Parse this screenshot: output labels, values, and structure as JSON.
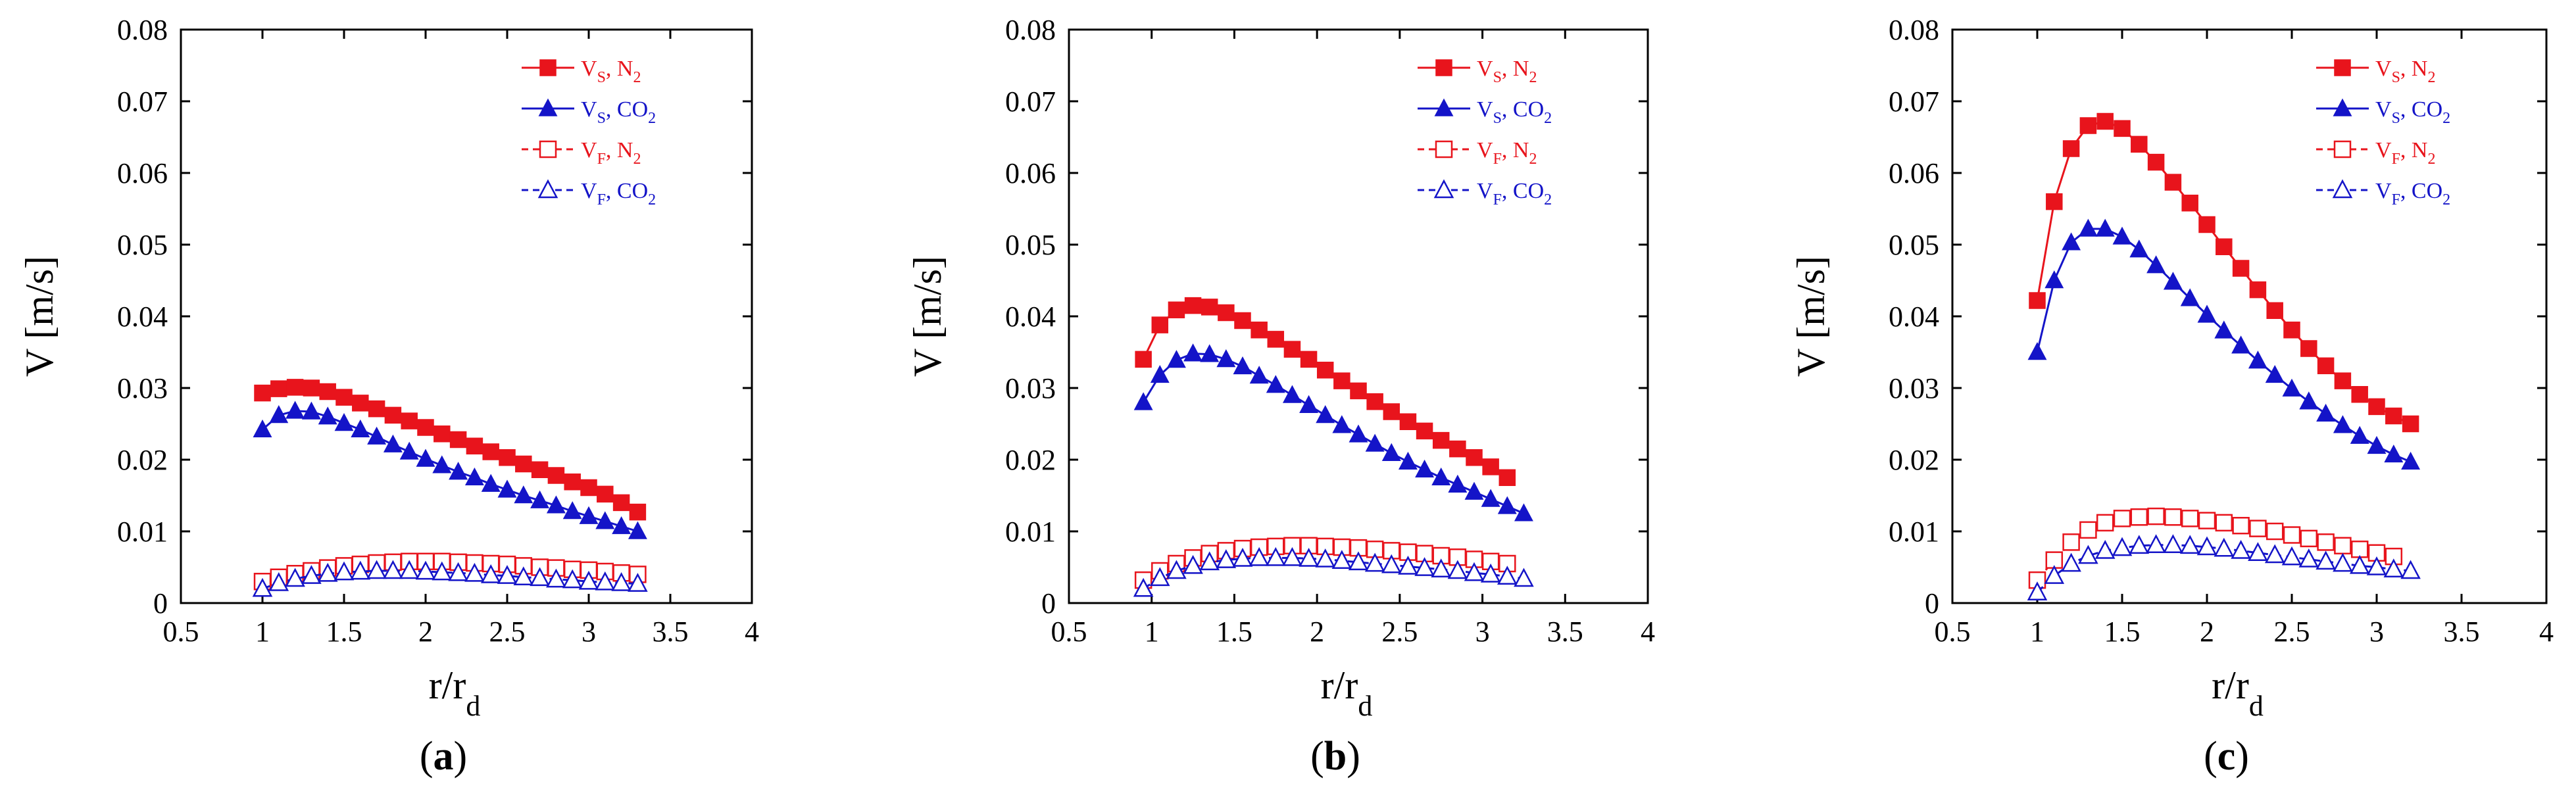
{
  "chart_data": [
    {
      "type": "scatter",
      "panel_label": "a",
      "xlabel": "r/r",
      "xlabel_sub": "d",
      "ylabel": "V [m/s]",
      "xlim": [
        0.5,
        4
      ],
      "ylim": [
        0,
        0.08
      ],
      "xticks": [
        "0.5",
        "1",
        "1.5",
        "2",
        "2.5",
        "3",
        "3.5",
        "4"
      ],
      "yticks": [
        "0",
        "0.01",
        "0.02",
        "0.03",
        "0.04",
        "0.05",
        "0.06",
        "0.07",
        "0.08"
      ],
      "legend": [
        {
          "v": "V",
          "vsub": "S",
          "gas": "N",
          "gsub": "2"
        },
        {
          "v": "V",
          "vsub": "S",
          "gas": "CO",
          "gsub": "2"
        },
        {
          "v": "V",
          "vsub": "F",
          "gas": "N",
          "gsub": "2"
        },
        {
          "v": "V",
          "vsub": "F",
          "gas": "CO",
          "gsub": "2"
        }
      ],
      "series": [
        {
          "name": "Vs, N2",
          "color": "#e8141c",
          "marker": "square-filled",
          "dashed": false,
          "x": [
            1.0,
            1.1,
            1.2,
            1.3,
            1.4,
            1.5,
            1.6,
            1.7,
            1.8,
            1.9,
            2.0,
            2.1,
            2.2,
            2.3,
            2.4,
            2.5,
            2.6,
            2.7,
            2.8,
            2.9,
            3.0,
            3.1,
            3.2,
            3.3
          ],
          "y": [
            0.0293,
            0.0299,
            0.0301,
            0.03,
            0.0295,
            0.0287,
            0.0279,
            0.0271,
            0.0262,
            0.0254,
            0.0245,
            0.0236,
            0.0228,
            0.0219,
            0.0211,
            0.0203,
            0.0194,
            0.0186,
            0.0178,
            0.0169,
            0.0161,
            0.0152,
            0.014,
            0.0127
          ]
        },
        {
          "name": "Vs, CO2",
          "color": "#1414c8",
          "marker": "triangle-filled",
          "dashed": false,
          "x": [
            1.0,
            1.1,
            1.2,
            1.3,
            1.4,
            1.5,
            1.6,
            1.7,
            1.8,
            1.9,
            2.0,
            2.1,
            2.2,
            2.3,
            2.4,
            2.5,
            2.6,
            2.7,
            2.8,
            2.9,
            3.0,
            3.1,
            3.2,
            3.3
          ],
          "y": [
            0.0242,
            0.0262,
            0.0268,
            0.0267,
            0.026,
            0.0251,
            0.0242,
            0.0232,
            0.0221,
            0.0211,
            0.0201,
            0.0192,
            0.0183,
            0.0175,
            0.0166,
            0.0158,
            0.015,
            0.0143,
            0.0136,
            0.0128,
            0.0121,
            0.0114,
            0.0107,
            0.01
          ]
        },
        {
          "name": "Vf, N2",
          "color": "#e8141c",
          "marker": "square-open",
          "dashed": true,
          "x": [
            1.0,
            1.1,
            1.2,
            1.3,
            1.4,
            1.5,
            1.6,
            1.7,
            1.8,
            1.9,
            2.0,
            2.1,
            2.2,
            2.3,
            2.4,
            2.5,
            2.6,
            2.7,
            2.8,
            2.9,
            3.0,
            3.1,
            3.2,
            3.3
          ],
          "y": [
            0.003,
            0.0036,
            0.0041,
            0.0045,
            0.0049,
            0.0052,
            0.0054,
            0.0056,
            0.0057,
            0.0058,
            0.0058,
            0.0058,
            0.0057,
            0.0056,
            0.0055,
            0.0054,
            0.0052,
            0.005,
            0.0049,
            0.0047,
            0.0046,
            0.0044,
            0.0042,
            0.004
          ]
        },
        {
          "name": "Vf, CO2",
          "color": "#1414c8",
          "marker": "triangle-open",
          "dashed": true,
          "x": [
            1.0,
            1.1,
            1.2,
            1.3,
            1.4,
            1.5,
            1.6,
            1.7,
            1.8,
            1.9,
            2.0,
            2.1,
            2.2,
            2.3,
            2.4,
            2.5,
            2.6,
            2.7,
            2.8,
            2.9,
            3.0,
            3.1,
            3.2,
            3.3
          ],
          "y": [
            0.002,
            0.0028,
            0.0034,
            0.0038,
            0.0041,
            0.0043,
            0.0044,
            0.0045,
            0.0045,
            0.0045,
            0.0044,
            0.0043,
            0.0042,
            0.0041,
            0.0039,
            0.0038,
            0.0036,
            0.0035,
            0.0033,
            0.0032,
            0.003,
            0.0029,
            0.0028,
            0.0027
          ]
        }
      ]
    },
    {
      "type": "scatter",
      "panel_label": "b",
      "xlabel": "r/r",
      "xlabel_sub": "d",
      "ylabel": "V [m/s]",
      "xlim": [
        0.5,
        4
      ],
      "ylim": [
        0,
        0.08
      ],
      "xticks": [
        "0.5",
        "1",
        "1.5",
        "2",
        "2.5",
        "3",
        "3.5",
        "4"
      ],
      "yticks": [
        "0",
        "0.01",
        "0.02",
        "0.03",
        "0.04",
        "0.05",
        "0.06",
        "0.07",
        "0.08"
      ],
      "legend": [
        {
          "v": "V",
          "vsub": "S",
          "gas": "N",
          "gsub": "2"
        },
        {
          "v": "V",
          "vsub": "S",
          "gas": "CO",
          "gsub": "2"
        },
        {
          "v": "V",
          "vsub": "F",
          "gas": "N",
          "gsub": "2"
        },
        {
          "v": "V",
          "vsub": "F",
          "gas": "CO",
          "gsub": "2"
        }
      ],
      "series": [
        {
          "name": "Vs, N2",
          "color": "#e8141c",
          "marker": "square-filled",
          "dashed": false,
          "x": [
            0.95,
            1.05,
            1.15,
            1.25,
            1.35,
            1.45,
            1.55,
            1.65,
            1.75,
            1.85,
            1.95,
            2.05,
            2.15,
            2.25,
            2.35,
            2.45,
            2.55,
            2.65,
            2.75,
            2.85,
            2.95,
            3.05,
            3.15
          ],
          "y": [
            0.034,
            0.0388,
            0.0409,
            0.0415,
            0.0413,
            0.0405,
            0.0394,
            0.0381,
            0.0368,
            0.0354,
            0.034,
            0.0325,
            0.031,
            0.0296,
            0.0281,
            0.0267,
            0.0253,
            0.024,
            0.0227,
            0.0215,
            0.0203,
            0.019,
            0.0175
          ]
        },
        {
          "name": "Vs, CO2",
          "color": "#1414c8",
          "marker": "triangle-filled",
          "dashed": false,
          "x": [
            0.95,
            1.05,
            1.15,
            1.25,
            1.35,
            1.45,
            1.55,
            1.65,
            1.75,
            1.85,
            1.95,
            2.05,
            2.15,
            2.25,
            2.35,
            2.45,
            2.55,
            2.65,
            2.75,
            2.85,
            2.95,
            3.05,
            3.15,
            3.25
          ],
          "y": [
            0.028,
            0.0318,
            0.0339,
            0.0348,
            0.0347,
            0.034,
            0.033,
            0.0317,
            0.0304,
            0.029,
            0.0276,
            0.0262,
            0.0248,
            0.0235,
            0.0222,
            0.0209,
            0.0197,
            0.0186,
            0.0175,
            0.0165,
            0.0155,
            0.0145,
            0.0135,
            0.0125
          ]
        },
        {
          "name": "Vf, N2",
          "color": "#e8141c",
          "marker": "square-open",
          "dashed": true,
          "x": [
            0.95,
            1.05,
            1.15,
            1.25,
            1.35,
            1.45,
            1.55,
            1.65,
            1.75,
            1.85,
            1.95,
            2.05,
            2.15,
            2.25,
            2.35,
            2.45,
            2.55,
            2.65,
            2.75,
            2.85,
            2.95,
            3.05,
            3.15
          ],
          "y": [
            0.0032,
            0.0045,
            0.0055,
            0.0063,
            0.0069,
            0.0073,
            0.0076,
            0.0078,
            0.0079,
            0.008,
            0.008,
            0.0079,
            0.0078,
            0.0077,
            0.0075,
            0.0073,
            0.0071,
            0.0069,
            0.0066,
            0.0064,
            0.0061,
            0.0058,
            0.0055
          ]
        },
        {
          "name": "Vf, CO2",
          "color": "#1414c8",
          "marker": "triangle-open",
          "dashed": true,
          "x": [
            0.95,
            1.05,
            1.15,
            1.25,
            1.35,
            1.45,
            1.55,
            1.65,
            1.75,
            1.85,
            1.95,
            2.05,
            2.15,
            2.25,
            2.35,
            2.45,
            2.55,
            2.65,
            2.75,
            2.85,
            2.95,
            3.05,
            3.15,
            3.25
          ],
          "y": [
            0.002,
            0.0035,
            0.0045,
            0.0052,
            0.0057,
            0.006,
            0.0062,
            0.0063,
            0.0063,
            0.0063,
            0.0062,
            0.0061,
            0.0059,
            0.0057,
            0.0055,
            0.0053,
            0.0051,
            0.0049,
            0.0047,
            0.0045,
            0.0042,
            0.004,
            0.0037,
            0.0034
          ]
        }
      ]
    },
    {
      "type": "scatter",
      "panel_label": "c",
      "xlabel": "r/r",
      "xlabel_sub": "d",
      "ylabel": "V [m/s]",
      "xlim": [
        0.5,
        4
      ],
      "ylim": [
        0,
        0.08
      ],
      "xticks": [
        "0.5",
        "1",
        "1.5",
        "2",
        "2.5",
        "3",
        "3.5",
        "4"
      ],
      "yticks": [
        "0",
        "0.01",
        "0.02",
        "0.03",
        "0.04",
        "0.05",
        "0.06",
        "0.07",
        "0.08"
      ],
      "legend": [
        {
          "v": "V",
          "vsub": "S",
          "gas": "N",
          "gsub": "2"
        },
        {
          "v": "V",
          "vsub": "S",
          "gas": "CO",
          "gsub": "2"
        },
        {
          "v": "V",
          "vsub": "F",
          "gas": "N",
          "gsub": "2"
        },
        {
          "v": "V",
          "vsub": "F",
          "gas": "CO",
          "gsub": "2"
        }
      ],
      "series": [
        {
          "name": "Vs, N2",
          "color": "#e8141c",
          "marker": "square-filled",
          "dashed": false,
          "x": [
            1.0,
            1.1,
            1.2,
            1.3,
            1.4,
            1.5,
            1.6,
            1.7,
            1.8,
            1.9,
            2.0,
            2.1,
            2.2,
            2.3,
            2.4,
            2.5,
            2.6,
            2.7,
            2.8,
            2.9,
            3.0,
            3.1,
            3.2
          ],
          "y": [
            0.0422,
            0.056,
            0.0634,
            0.0666,
            0.0672,
            0.0662,
            0.064,
            0.0615,
            0.0587,
            0.0558,
            0.0528,
            0.0497,
            0.0467,
            0.0437,
            0.0408,
            0.0381,
            0.0355,
            0.0331,
            0.031,
            0.0291,
            0.0274,
            0.0261,
            0.025
          ]
        },
        {
          "name": "Vs, CO2",
          "color": "#1414c8",
          "marker": "triangle-filled",
          "dashed": false,
          "x": [
            1.0,
            1.1,
            1.2,
            1.3,
            1.4,
            1.5,
            1.6,
            1.7,
            1.8,
            1.9,
            2.0,
            2.1,
            2.2,
            2.3,
            2.4,
            2.5,
            2.6,
            2.7,
            2.8,
            2.9,
            3.0,
            3.1,
            3.2
          ],
          "y": [
            0.035,
            0.045,
            0.0503,
            0.0522,
            0.0522,
            0.0511,
            0.0493,
            0.0471,
            0.0448,
            0.0425,
            0.0402,
            0.038,
            0.0359,
            0.0338,
            0.0318,
            0.0299,
            0.0281,
            0.0264,
            0.0248,
            0.0233,
            0.0219,
            0.0207,
            0.0197
          ]
        },
        {
          "name": "Vf, N2",
          "color": "#e8141c",
          "marker": "square-open",
          "dashed": true,
          "x": [
            1.0,
            1.1,
            1.2,
            1.3,
            1.4,
            1.5,
            1.6,
            1.7,
            1.8,
            1.9,
            2.0,
            2.1,
            2.2,
            2.3,
            2.4,
            2.5,
            2.6,
            2.7,
            2.8,
            2.9,
            3.0,
            3.1
          ],
          "y": [
            0.0032,
            0.006,
            0.0085,
            0.0102,
            0.0112,
            0.0118,
            0.012,
            0.0121,
            0.012,
            0.0118,
            0.0115,
            0.0112,
            0.0108,
            0.0104,
            0.01,
            0.0095,
            0.009,
            0.0085,
            0.008,
            0.0075,
            0.007,
            0.0065
          ]
        },
        {
          "name": "Vf, CO2",
          "color": "#1414c8",
          "marker": "triangle-open",
          "dashed": true,
          "x": [
            1.0,
            1.1,
            1.2,
            1.3,
            1.4,
            1.5,
            1.6,
            1.7,
            1.8,
            1.9,
            2.0,
            2.1,
            2.2,
            2.3,
            2.4,
            2.5,
            2.6,
            2.7,
            2.8,
            2.9,
            3.0,
            3.1,
            3.2
          ],
          "y": [
            0.0015,
            0.0038,
            0.0055,
            0.0066,
            0.0073,
            0.0077,
            0.008,
            0.0081,
            0.0081,
            0.008,
            0.0078,
            0.0076,
            0.0073,
            0.007,
            0.0067,
            0.0064,
            0.0061,
            0.0058,
            0.0055,
            0.0052,
            0.005,
            0.0047,
            0.0045
          ]
        }
      ]
    }
  ]
}
